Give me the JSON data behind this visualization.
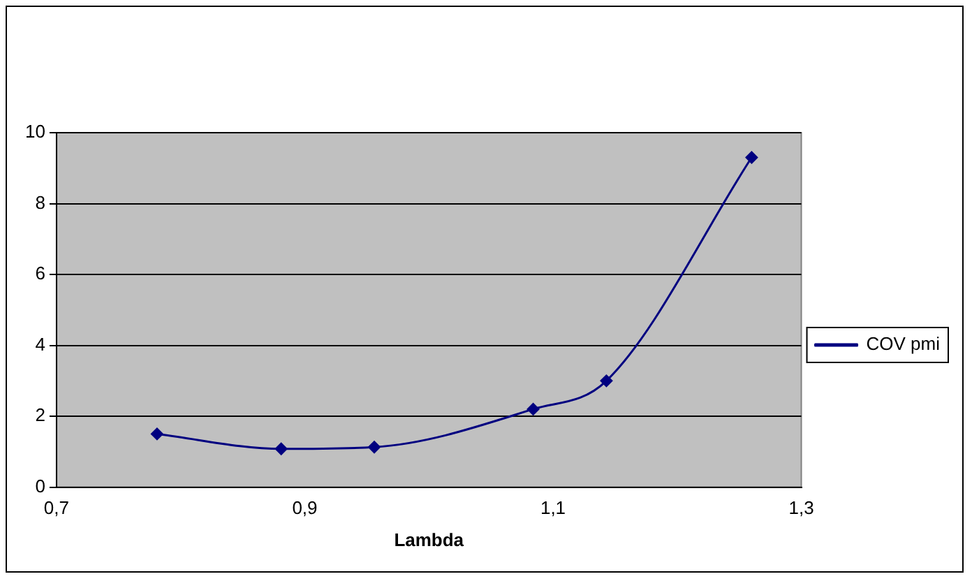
{
  "chart_data": {
    "type": "line",
    "xlabel": "Lambda",
    "x": [
      0.781,
      0.881,
      0.956,
      1.084,
      1.143,
      1.26
    ],
    "series": [
      {
        "name": "COV pmi",
        "color": "#000080",
        "values": [
          1.5,
          1.08,
          1.13,
          2.2,
          3.0,
          9.3
        ]
      }
    ],
    "xlim": [
      0.7,
      1.3
    ],
    "xticks": [
      {
        "value": 0.7,
        "label": "0,7"
      },
      {
        "value": 0.9,
        "label": "0,9"
      },
      {
        "value": 1.1,
        "label": "1,1"
      },
      {
        "value": 1.3,
        "label": "1,3"
      }
    ],
    "ylim": [
      0,
      10
    ],
    "yticks": [
      0,
      2,
      4,
      6,
      8,
      10
    ],
    "grid": "y",
    "legend": "right",
    "marker": "diamond",
    "line_style": "solid"
  }
}
